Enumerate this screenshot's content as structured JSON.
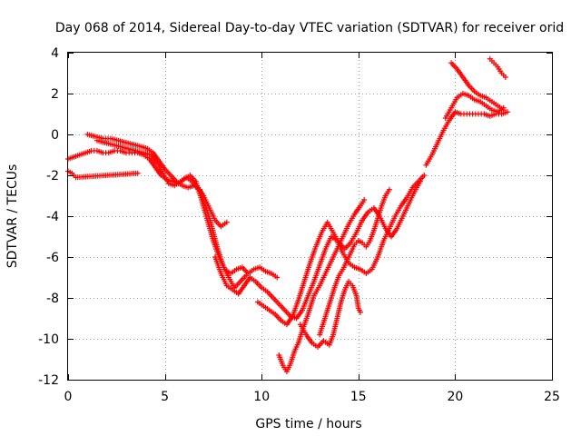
{
  "chart_data": {
    "type": "scatter",
    "title": "Day 068 of 2014, Sidereal Day-to-day VTEC variation (SDTVAR) for receiver orid",
    "xlabel": "GPS time / hours",
    "ylabel": "SDTVAR / TECUs",
    "xlim": [
      0,
      25
    ],
    "ylim": [
      -12,
      4
    ],
    "x_ticks": [
      0,
      5,
      10,
      15,
      20,
      25
    ],
    "y_ticks": [
      -12,
      -10,
      -8,
      -6,
      -4,
      -2,
      0,
      2,
      4
    ],
    "x_tick_labels": [
      "0",
      "5",
      "10",
      "15",
      "20",
      "25"
    ],
    "y_tick_labels": [
      "-12",
      "-10",
      "-8",
      "-6",
      "-4",
      "-2",
      "0",
      "2",
      "4"
    ],
    "grid": true,
    "marker": "plus",
    "color": "#ff0000",
    "series": [
      {
        "values": [
          [
            0.0,
            -1.2
          ],
          [
            0.3,
            -1.1
          ],
          [
            0.6,
            -1.0
          ],
          [
            0.9,
            -0.9
          ],
          [
            1.2,
            -0.8
          ],
          [
            1.5,
            -0.8
          ],
          [
            1.8,
            -0.9
          ],
          [
            2.1,
            -0.9
          ],
          [
            2.4,
            -0.8
          ],
          [
            2.7,
            -0.8
          ],
          [
            3.0,
            -0.9
          ],
          [
            3.3,
            -0.9
          ],
          [
            3.6,
            -0.9
          ],
          [
            3.9,
            -1.0
          ],
          [
            4.2,
            -1.2
          ],
          [
            4.5,
            -1.6
          ],
          [
            4.8,
            -2.0
          ],
          [
            5.1,
            -2.2
          ],
          [
            5.4,
            -2.3
          ],
          [
            5.7,
            -2.4
          ],
          [
            6.0,
            -2.2
          ],
          [
            6.3,
            -2.0
          ],
          [
            6.6,
            -2.3
          ],
          [
            6.9,
            -3.2
          ],
          [
            7.2,
            -4.2
          ],
          [
            7.5,
            -5.2
          ],
          [
            7.8,
            -6.0
          ],
          [
            8.1,
            -6.6
          ],
          [
            8.4,
            -6.8
          ],
          [
            8.7,
            -6.6
          ],
          [
            9.0,
            -6.5
          ],
          [
            9.3,
            -6.8
          ],
          [
            9.6,
            -6.6
          ],
          [
            9.9,
            -6.5
          ],
          [
            10.2,
            -6.7
          ],
          [
            10.5,
            -6.8
          ],
          [
            10.8,
            -7.0
          ]
        ]
      },
      {
        "values": [
          [
            1.0,
            0.0
          ],
          [
            1.4,
            -0.1
          ],
          [
            1.8,
            -0.2
          ],
          [
            2.2,
            -0.2
          ],
          [
            2.6,
            -0.3
          ],
          [
            3.0,
            -0.4
          ],
          [
            3.4,
            -0.5
          ],
          [
            3.8,
            -0.6
          ],
          [
            4.1,
            -0.7
          ],
          [
            4.4,
            -0.9
          ],
          [
            4.7,
            -1.3
          ],
          [
            5.0,
            -1.7
          ],
          [
            5.3,
            -2.0
          ],
          [
            5.6,
            -2.3
          ],
          [
            5.9,
            -2.5
          ],
          [
            6.2,
            -2.6
          ],
          [
            6.5,
            -2.5
          ],
          [
            6.8,
            -2.7
          ],
          [
            7.1,
            -3.5
          ],
          [
            7.4,
            -4.4
          ],
          [
            7.7,
            -5.5
          ],
          [
            8.0,
            -6.4
          ],
          [
            8.3,
            -7.0
          ],
          [
            8.6,
            -7.5
          ],
          [
            8.9,
            -7.2
          ],
          [
            9.2,
            -6.9
          ]
        ]
      },
      {
        "values": [
          [
            1.5,
            -0.3
          ],
          [
            1.9,
            -0.4
          ],
          [
            2.3,
            -0.5
          ],
          [
            2.7,
            -0.6
          ],
          [
            3.1,
            -0.7
          ],
          [
            3.5,
            -0.8
          ],
          [
            3.9,
            -0.9
          ],
          [
            4.3,
            -1.0
          ],
          [
            4.6,
            -1.4
          ],
          [
            4.9,
            -1.9
          ],
          [
            5.2,
            -2.4
          ],
          [
            5.5,
            -2.5
          ],
          [
            5.8,
            -2.3
          ],
          [
            6.1,
            -2.1
          ],
          [
            6.4,
            -2.3
          ],
          [
            6.7,
            -2.6
          ],
          [
            7.0,
            -3.0
          ],
          [
            7.3,
            -3.6
          ],
          [
            7.6,
            -4.2
          ],
          [
            7.9,
            -4.5
          ],
          [
            8.2,
            -4.3
          ]
        ]
      },
      {
        "values": [
          [
            7.6,
            -6.0
          ],
          [
            7.9,
            -6.8
          ],
          [
            8.2,
            -7.4
          ],
          [
            8.5,
            -7.6
          ],
          [
            8.8,
            -7.8
          ],
          [
            9.1,
            -7.4
          ],
          [
            9.4,
            -7.0
          ],
          [
            9.7,
            -7.2
          ],
          [
            10.0,
            -7.5
          ],
          [
            10.3,
            -7.7
          ],
          [
            10.6,
            -8.0
          ],
          [
            10.9,
            -8.3
          ],
          [
            11.2,
            -8.6
          ],
          [
            11.5,
            -8.9
          ],
          [
            11.8,
            -9.0
          ],
          [
            12.1,
            -8.6
          ],
          [
            12.4,
            -7.9
          ],
          [
            12.7,
            -7.2
          ],
          [
            13.0,
            -6.4
          ],
          [
            13.3,
            -5.6
          ],
          [
            13.6,
            -5.0
          ],
          [
            13.9,
            -5.2
          ],
          [
            14.2,
            -5.8
          ],
          [
            14.5,
            -6.3
          ],
          [
            14.8,
            -6.5
          ],
          [
            15.1,
            -6.6
          ],
          [
            15.4,
            -6.8
          ],
          [
            15.7,
            -6.6
          ],
          [
            16.0,
            -6.0
          ],
          [
            16.3,
            -5.2
          ],
          [
            16.6,
            -4.6
          ],
          [
            16.9,
            -4.0
          ],
          [
            17.2,
            -3.5
          ],
          [
            17.5,
            -3.1
          ],
          [
            17.8,
            -2.6
          ],
          [
            18.1,
            -2.3
          ],
          [
            18.4,
            -2.0
          ]
        ]
      },
      {
        "values": [
          [
            9.8,
            -8.2
          ],
          [
            10.1,
            -8.4
          ],
          [
            10.4,
            -8.6
          ],
          [
            10.7,
            -8.8
          ],
          [
            11.0,
            -9.1
          ],
          [
            11.3,
            -9.3
          ],
          [
            11.6,
            -8.9
          ],
          [
            11.9,
            -8.1
          ],
          [
            12.2,
            -7.2
          ],
          [
            12.5,
            -6.3
          ],
          [
            12.8,
            -5.5
          ],
          [
            13.1,
            -4.8
          ],
          [
            13.4,
            -4.3
          ],
          [
            13.7,
            -4.8
          ],
          [
            14.0,
            -5.3
          ],
          [
            14.3,
            -5.6
          ],
          [
            14.6,
            -5.3
          ],
          [
            14.9,
            -4.8
          ],
          [
            15.2,
            -4.2
          ],
          [
            15.5,
            -3.8
          ],
          [
            15.8,
            -3.6
          ],
          [
            16.1,
            -4.0
          ],
          [
            16.4,
            -4.6
          ],
          [
            16.7,
            -5.0
          ],
          [
            17.0,
            -4.6
          ],
          [
            17.3,
            -4.0
          ],
          [
            17.6,
            -3.4
          ],
          [
            17.9,
            -2.8
          ],
          [
            18.2,
            -2.3
          ]
        ]
      },
      {
        "values": [
          [
            10.9,
            -10.8
          ],
          [
            11.1,
            -11.3
          ],
          [
            11.3,
            -11.6
          ],
          [
            11.5,
            -11.2
          ],
          [
            11.7,
            -10.6
          ],
          [
            11.9,
            -10.2
          ],
          [
            12.1,
            -9.6
          ],
          [
            12.4,
            -8.8
          ],
          [
            12.7,
            -7.9
          ],
          [
            13.0,
            -7.4
          ],
          [
            13.3,
            -6.8
          ],
          [
            13.6,
            -6.2
          ],
          [
            13.9,
            -5.6
          ],
          [
            14.2,
            -5.0
          ],
          [
            14.5,
            -4.4
          ],
          [
            14.8,
            -3.9
          ],
          [
            15.1,
            -3.5
          ],
          [
            15.3,
            -3.2
          ]
        ]
      },
      {
        "values": [
          [
            12.0,
            -9.3
          ],
          [
            12.3,
            -9.8
          ],
          [
            12.6,
            -10.2
          ],
          [
            12.9,
            -10.4
          ],
          [
            13.2,
            -10.1
          ],
          [
            13.5,
            -10.3
          ],
          [
            13.7,
            -9.8
          ],
          [
            13.9,
            -9.0
          ],
          [
            14.1,
            -8.2
          ],
          [
            14.3,
            -7.6
          ],
          [
            14.5,
            -7.2
          ],
          [
            14.7,
            -7.4
          ],
          [
            14.9,
            -7.9
          ],
          [
            15.0,
            -8.5
          ],
          [
            15.1,
            -8.7
          ]
        ]
      },
      {
        "values": [
          [
            13.0,
            -9.8
          ],
          [
            13.2,
            -9.2
          ],
          [
            13.4,
            -8.6
          ],
          [
            13.6,
            -8.0
          ],
          [
            13.8,
            -7.4
          ],
          [
            14.0,
            -6.9
          ],
          [
            14.2,
            -6.6
          ],
          [
            14.4,
            -6.2
          ],
          [
            14.6,
            -5.8
          ],
          [
            14.8,
            -5.4
          ],
          [
            15.0,
            -5.2
          ],
          [
            15.2,
            -5.3
          ],
          [
            15.4,
            -5.5
          ],
          [
            15.6,
            -5.2
          ],
          [
            15.8,
            -4.7
          ],
          [
            16.0,
            -4.1
          ],
          [
            16.2,
            -3.5
          ],
          [
            16.4,
            -3.0
          ],
          [
            16.6,
            -2.7
          ]
        ]
      },
      {
        "values": [
          [
            18.5,
            -1.5
          ],
          [
            18.8,
            -1.0
          ],
          [
            19.1,
            -0.4
          ],
          [
            19.4,
            0.2
          ],
          [
            19.7,
            0.7
          ],
          [
            20.0,
            1.1
          ],
          [
            20.3,
            1.0
          ],
          [
            20.6,
            1.0
          ],
          [
            20.9,
            1.0
          ],
          [
            21.2,
            1.0
          ],
          [
            21.5,
            1.0
          ],
          [
            21.8,
            0.9
          ],
          [
            22.1,
            1.0
          ],
          [
            22.4,
            1.0
          ],
          [
            22.7,
            1.1
          ]
        ]
      },
      {
        "values": [
          [
            19.5,
            0.8
          ],
          [
            19.8,
            1.3
          ],
          [
            20.1,
            1.8
          ],
          [
            20.4,
            2.0
          ],
          [
            20.7,
            1.9
          ],
          [
            21.0,
            1.7
          ],
          [
            21.3,
            1.6
          ],
          [
            21.6,
            1.4
          ],
          [
            21.9,
            1.2
          ],
          [
            22.2,
            1.1
          ],
          [
            22.5,
            1.3
          ]
        ]
      },
      {
        "values": [
          [
            19.8,
            3.5
          ],
          [
            20.1,
            3.2
          ],
          [
            20.4,
            2.8
          ],
          [
            20.7,
            2.4
          ],
          [
            21.0,
            2.1
          ],
          [
            21.3,
            1.9
          ],
          [
            21.6,
            1.8
          ],
          [
            21.9,
            1.6
          ],
          [
            22.2,
            1.4
          ],
          [
            22.5,
            1.2
          ]
        ]
      },
      {
        "values": [
          [
            21.8,
            3.7
          ],
          [
            22.0,
            3.5
          ],
          [
            22.2,
            3.3
          ],
          [
            22.4,
            3.0
          ],
          [
            22.6,
            2.8
          ]
        ]
      },
      {
        "values": [
          [
            0.0,
            -1.8
          ],
          [
            0.2,
            -1.9
          ],
          [
            0.4,
            -2.1
          ],
          [
            3.6,
            -1.9
          ]
        ]
      }
    ]
  }
}
